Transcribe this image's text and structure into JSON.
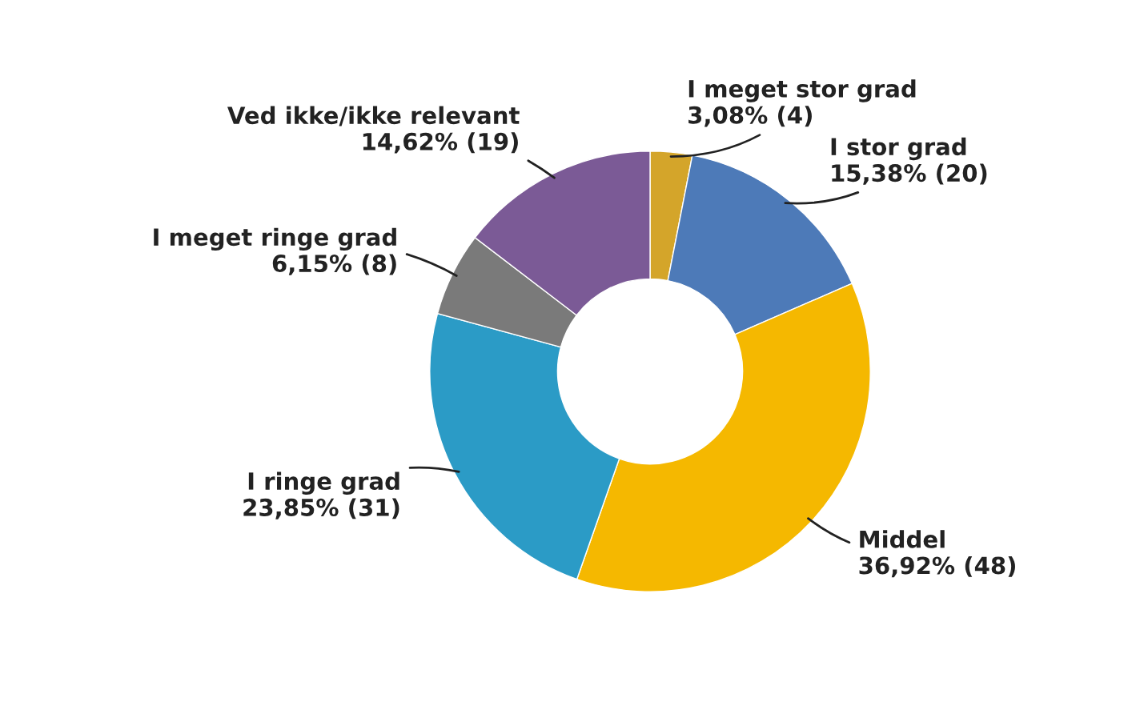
{
  "chart_data": {
    "type": "donut",
    "categories": [
      "I meget stor grad",
      "I stor grad",
      "Middel",
      "I ringe grad",
      "I meget ringe grad",
      "Ved ikke/ikke relevant"
    ],
    "values": [
      4,
      20,
      48,
      31,
      8,
      19
    ],
    "value_labels": [
      "3,08% (4)",
      "15,38% (20)",
      "36,92% (48)",
      "23,85% (31)",
      "6,15% (8)",
      "14,62% (19)"
    ],
    "colors": [
      "#d4a52a",
      "#4d7ab8",
      "#f5b800",
      "#2b9bc6",
      "#7a7a7a",
      "#7b5a96"
    ],
    "legend": false
  }
}
